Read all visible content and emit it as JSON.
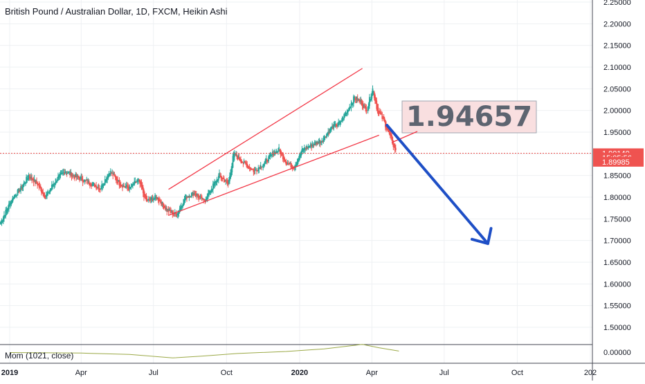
{
  "chart_data": {
    "type": "candlestick",
    "title": "British Pound / Australian Dollar, 1D, FXCM, Heikin Ashi",
    "style": "Heikin Ashi",
    "y_ticks": [
      "2.25000",
      "2.20000",
      "2.15000",
      "2.10000",
      "2.05000",
      "2.00000",
      "1.95000",
      "1.90000",
      "1.85000",
      "1.80000",
      "1.75000",
      "1.70000",
      "1.65000",
      "1.60000",
      "1.55000",
      "1.50000"
    ],
    "ylim": [
      1.5,
      2.25
    ],
    "x_ticks": [
      {
        "label": "2019",
        "date": "2019-01-01",
        "bold": true
      },
      {
        "label": "Apr",
        "date": "2019-04-01",
        "bold": false
      },
      {
        "label": "Jul",
        "date": "2019-07-01",
        "bold": false
      },
      {
        "label": "Oct",
        "date": "2019-10-01",
        "bold": false
      },
      {
        "label": "2020",
        "date": "2020-01-01",
        "bold": true
      },
      {
        "label": "Apr",
        "date": "2020-04-01",
        "bold": false
      },
      {
        "label": "Jul",
        "date": "2020-07-01",
        "bold": false
      },
      {
        "label": "Oct",
        "date": "2020-10-01",
        "bold": false
      },
      {
        "label": "202",
        "date": "2021-01-01",
        "bold": false
      }
    ],
    "series": [
      {
        "points": [
          [
            "2018-12-20",
            1.74
          ],
          [
            "2019-01-05",
            1.8
          ],
          [
            "2019-01-15",
            1.82
          ],
          [
            "2019-01-25",
            1.85
          ],
          [
            "2019-02-05",
            1.83
          ],
          [
            "2019-02-15",
            1.8
          ],
          [
            "2019-02-28",
            1.84
          ],
          [
            "2019-03-12",
            1.86
          ],
          [
            "2019-03-22",
            1.85
          ],
          [
            "2019-04-03",
            1.84
          ],
          [
            "2019-04-15",
            1.83
          ],
          [
            "2019-04-25",
            1.82
          ],
          [
            "2019-05-07",
            1.86
          ],
          [
            "2019-05-20",
            1.83
          ],
          [
            "2019-06-01",
            1.82
          ],
          [
            "2019-06-12",
            1.84
          ],
          [
            "2019-06-22",
            1.79
          ],
          [
            "2019-07-05",
            1.8
          ],
          [
            "2019-07-18",
            1.77
          ],
          [
            "2019-07-30",
            1.76
          ],
          [
            "2019-08-10",
            1.8
          ],
          [
            "2019-08-22",
            1.81
          ],
          [
            "2019-09-02",
            1.79
          ],
          [
            "2019-09-12",
            1.82
          ],
          [
            "2019-09-22",
            1.85
          ],
          [
            "2019-10-03",
            1.83
          ],
          [
            "2019-10-10",
            1.9
          ],
          [
            "2019-10-22",
            1.88
          ],
          [
            "2019-11-05",
            1.86
          ],
          [
            "2019-11-18",
            1.88
          ],
          [
            "2019-11-28",
            1.9
          ],
          [
            "2019-12-06",
            1.91
          ],
          [
            "2019-12-15",
            1.88
          ],
          [
            "2019-12-25",
            1.87
          ],
          [
            "2020-01-05",
            1.91
          ],
          [
            "2020-01-15",
            1.92
          ],
          [
            "2020-01-28",
            1.93
          ],
          [
            "2020-02-10",
            1.96
          ],
          [
            "2020-02-20",
            1.97
          ],
          [
            "2020-03-01",
            2.0
          ],
          [
            "2020-03-10",
            2.03
          ],
          [
            "2020-03-18",
            2.02
          ],
          [
            "2020-03-25",
            2.0
          ],
          [
            "2020-04-02",
            2.05
          ],
          [
            "2020-04-08",
            2.0
          ],
          [
            "2020-04-15",
            1.98
          ],
          [
            "2020-04-22",
            1.95
          ],
          [
            "2020-04-28",
            1.92
          ],
          [
            "2020-05-02",
            1.9
          ]
        ]
      }
    ],
    "price_tags": [
      {
        "label": "1.90140",
        "value": 1.9014
      },
      {
        "label": "15:05:56",
        "value": 1.8913
      },
      {
        "label": "1.89985",
        "value": 1.8816
      }
    ],
    "current_price_line": 1.9014,
    "annotations": {
      "callout_text": "1.94657",
      "channel_upper": [
        [
          "2019-07-20",
          1.818
        ],
        [
          "2020-03-20",
          2.097
        ]
      ],
      "channel_lower": [
        [
          "2019-07-20",
          1.758
        ],
        [
          "2020-04-10",
          1.943
        ]
      ],
      "arrow_path": [
        [
          "2020-04-20",
          1.966
        ],
        [
          "2020-07-10",
          1.9
        ],
        [
          "2020-08-25",
          1.693
        ]
      ],
      "arrow_head": [
        [
          "2020-08-05",
          1.703
        ],
        [
          "2020-08-25",
          1.693
        ],
        [
          "2020-08-29",
          1.728
        ]
      ],
      "colors": {
        "bull": "#26a69a",
        "bear": "#ef5350",
        "channel": "#f23645",
        "arrow": "#1e4fc6",
        "price_tag": "#ef5350",
        "callout_bg": "#f9dfe0",
        "callout_border": "#a0a6b0"
      }
    },
    "indicator": {
      "label": "Mom (1021, close)",
      "y_tick": "0.00000",
      "color": "#9aa845",
      "points": [
        [
          "2019-01-01",
          -0.003
        ],
        [
          "2019-04-01",
          -0.008
        ],
        [
          "2019-06-01",
          -0.02
        ],
        [
          "2019-07-25",
          -0.052
        ],
        [
          "2019-09-01",
          -0.035
        ],
        [
          "2019-10-15",
          -0.012
        ],
        [
          "2019-12-15",
          0.006
        ],
        [
          "2020-02-01",
          0.03
        ],
        [
          "2020-03-20",
          0.07
        ],
        [
          "2020-04-10",
          0.04
        ],
        [
          "2020-05-05",
          0.01
        ]
      ]
    }
  }
}
